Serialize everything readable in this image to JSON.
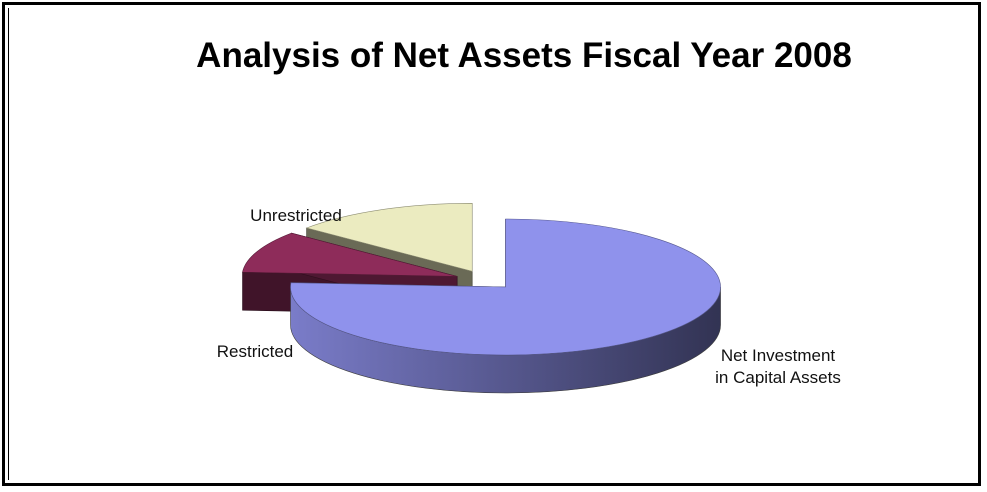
{
  "chart_data": {
    "type": "pie",
    "style": "3d-exploded",
    "title": "Analysis of Net Assets Fiscal Year 2008",
    "slices": [
      {
        "label": "Net Investment in Capital Assets",
        "label_lines": [
          "Net Investment",
          "in Capital Assets"
        ],
        "value": 76,
        "color": "#8f92ec"
      },
      {
        "label": "Restricted",
        "label_lines": [
          "Restricted"
        ],
        "value": 10,
        "color": "#8e2c5a"
      },
      {
        "label": "Unrestricted",
        "label_lines": [
          "Unrestricted"
        ],
        "value": 14,
        "color": "#ebebc0"
      }
    ],
    "legend": "none"
  }
}
